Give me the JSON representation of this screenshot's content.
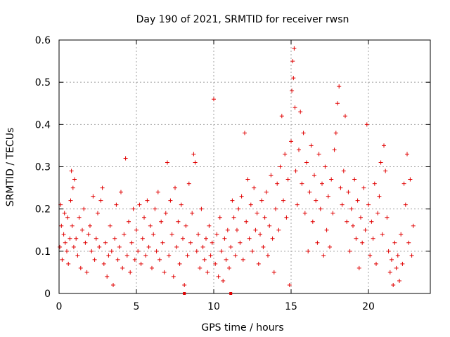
{
  "chart_data": {
    "type": "scatter",
    "title": "Day 190 of 2021, SRMTID for receiver rwsn",
    "xlabel": "GPS time / hours",
    "ylabel": "SRMTID / TECUs",
    "xlim": [
      0,
      24
    ],
    "ylim": [
      0,
      0.6
    ],
    "x_ticks": [
      0,
      5,
      10,
      15,
      20
    ],
    "x_tick_labels": [
      "0",
      "5",
      "10",
      "15",
      "20"
    ],
    "y_ticks": [
      0,
      0.1,
      0.2,
      0.3,
      0.4,
      0.5,
      0.6
    ],
    "y_tick_labels": [
      "0",
      "0.1",
      "0.2",
      "0.3",
      "0.4",
      "0.5",
      "0.6"
    ],
    "grid": true,
    "series_color": "#e00000",
    "marker": "plus",
    "series": [
      {
        "name": "SRMTID",
        "points": [
          [
            0.05,
            0.11
          ],
          [
            0.1,
            0.21
          ],
          [
            0.15,
            0.16
          ],
          [
            0.2,
            0.08
          ],
          [
            0.3,
            0.14
          ],
          [
            0.35,
            0.19
          ],
          [
            0.4,
            0.12
          ],
          [
            0.5,
            0.1
          ],
          [
            0.55,
            0.18
          ],
          [
            0.6,
            0.07
          ],
          [
            0.7,
            0.13
          ],
          [
            0.75,
            0.22
          ],
          [
            0.8,
            0.29
          ],
          [
            0.85,
            0.16
          ],
          [
            0.9,
            0.25
          ],
          [
            0.95,
            0.11
          ],
          [
            1.0,
            0.27
          ],
          [
            1.1,
            0.13
          ],
          [
            1.2,
            0.09
          ],
          [
            1.3,
            0.18
          ],
          [
            1.4,
            0.06
          ],
          [
            1.5,
            0.15
          ],
          [
            1.6,
            0.2
          ],
          [
            1.7,
            0.12
          ],
          [
            1.8,
            0.05
          ],
          [
            1.9,
            0.14
          ],
          [
            2.0,
            0.16
          ],
          [
            2.1,
            0.1
          ],
          [
            2.2,
            0.23
          ],
          [
            2.3,
            0.08
          ],
          [
            2.4,
            0.13
          ],
          [
            2.5,
            0.19
          ],
          [
            2.6,
            0.11
          ],
          [
            2.7,
            0.22
          ],
          [
            2.8,
            0.25
          ],
          [
            2.9,
            0.07
          ],
          [
            3.0,
            0.12
          ],
          [
            3.1,
            0.04
          ],
          [
            3.2,
            0.09
          ],
          [
            3.3,
            0.16
          ],
          [
            3.4,
            0.1
          ],
          [
            3.5,
            0.02
          ],
          [
            3.6,
            0.13
          ],
          [
            3.7,
            0.21
          ],
          [
            3.8,
            0.08
          ],
          [
            3.9,
            0.11
          ],
          [
            4.0,
            0.24
          ],
          [
            4.1,
            0.06
          ],
          [
            4.2,
            0.14
          ],
          [
            4.3,
            0.32
          ],
          [
            4.4,
            0.09
          ],
          [
            4.5,
            0.17
          ],
          [
            4.6,
            0.05
          ],
          [
            4.7,
            0.12
          ],
          [
            4.8,
            0.2
          ],
          [
            4.9,
            0.08
          ],
          [
            5.0,
            0.15
          ],
          [
            5.1,
            0.1
          ],
          [
            5.2,
            0.21
          ],
          [
            5.3,
            0.07
          ],
          [
            5.4,
            0.13
          ],
          [
            5.5,
            0.18
          ],
          [
            5.6,
            0.09
          ],
          [
            5.7,
            0.22
          ],
          [
            5.8,
            0.11
          ],
          [
            5.9,
            0.16
          ],
          [
            6.0,
            0.06
          ],
          [
            6.1,
            0.14
          ],
          [
            6.2,
            0.2
          ],
          [
            6.3,
            0.1
          ],
          [
            6.4,
            0.24
          ],
          [
            6.5,
            0.08
          ],
          [
            6.6,
            0.17
          ],
          [
            6.7,
            0.12
          ],
          [
            6.8,
            0.05
          ],
          [
            6.9,
            0.19
          ],
          [
            7.0,
            0.31
          ],
          [
            7.1,
            0.09
          ],
          [
            7.2,
            0.22
          ],
          [
            7.3,
            0.14
          ],
          [
            7.4,
            0.04
          ],
          [
            7.5,
            0.25
          ],
          [
            7.6,
            0.11
          ],
          [
            7.7,
            0.17
          ],
          [
            7.8,
            0.07
          ],
          [
            7.9,
            0.21
          ],
          [
            8.0,
            0.13
          ],
          [
            8.1,
            0.02
          ],
          [
            8.2,
            0.16
          ],
          [
            8.3,
            0.09
          ],
          [
            8.4,
            0.26
          ],
          [
            8.5,
            0.12
          ],
          [
            8.6,
            0.19
          ],
          [
            8.7,
            0.33
          ],
          [
            8.8,
            0.31
          ],
          [
            8.9,
            0.1
          ],
          [
            9.0,
            0.14
          ],
          [
            9.1,
            0.06
          ],
          [
            9.2,
            0.2
          ],
          [
            9.3,
            0.11
          ],
          [
            9.4,
            0.08
          ],
          [
            9.5,
            0.13
          ],
          [
            9.6,
            0.05
          ],
          [
            9.7,
            0.16
          ],
          [
            9.8,
            0.09
          ],
          [
            9.9,
            0.12
          ],
          [
            10.0,
            0.46
          ],
          [
            10.1,
            0.07
          ],
          [
            10.2,
            0.14
          ],
          [
            10.3,
            0.04
          ],
          [
            10.4,
            0.18
          ],
          [
            10.5,
            0.1
          ],
          [
            10.6,
            0.03
          ],
          [
            10.7,
            0.13
          ],
          [
            10.8,
            0.08
          ],
          [
            10.9,
            0.15
          ],
          [
            11.0,
            0.06
          ],
          [
            11.1,
            0.11
          ],
          [
            11.2,
            0.22
          ],
          [
            11.3,
            0.18
          ],
          [
            11.4,
            0.09
          ],
          [
            11.5,
            0.15
          ],
          [
            11.6,
            0.2
          ],
          [
            11.7,
            0.12
          ],
          [
            11.8,
            0.23
          ],
          [
            11.9,
            0.08
          ],
          [
            12.0,
            0.38
          ],
          [
            12.1,
            0.17
          ],
          [
            12.2,
            0.27
          ],
          [
            12.3,
            0.13
          ],
          [
            12.4,
            0.21
          ],
          [
            12.5,
            0.1
          ],
          [
            12.6,
            0.25
          ],
          [
            12.7,
            0.15
          ],
          [
            12.8,
            0.19
          ],
          [
            12.9,
            0.07
          ],
          [
            13.0,
            0.14
          ],
          [
            13.1,
            0.22
          ],
          [
            13.2,
            0.11
          ],
          [
            13.3,
            0.18
          ],
          [
            13.4,
            0.24
          ],
          [
            13.5,
            0.09
          ],
          [
            13.6,
            0.16
          ],
          [
            13.7,
            0.28
          ],
          [
            13.8,
            0.13
          ],
          [
            13.9,
            0.05
          ],
          [
            14.0,
            0.2
          ],
          [
            14.1,
            0.26
          ],
          [
            14.2,
            0.15
          ],
          [
            14.3,
            0.3
          ],
          [
            14.4,
            0.42
          ],
          [
            14.5,
            0.22
          ],
          [
            14.6,
            0.33
          ],
          [
            14.7,
            0.18
          ],
          [
            14.8,
            0.27
          ],
          [
            14.9,
            0.02
          ],
          [
            15.0,
            0.36
          ],
          [
            15.05,
            0.48
          ],
          [
            15.1,
            0.55
          ],
          [
            15.15,
            0.51
          ],
          [
            15.2,
            0.58
          ],
          [
            15.25,
            0.44
          ],
          [
            15.3,
            0.29
          ],
          [
            15.4,
            0.21
          ],
          [
            15.5,
            0.34
          ],
          [
            15.6,
            0.43
          ],
          [
            15.7,
            0.26
          ],
          [
            15.8,
            0.38
          ],
          [
            15.9,
            0.19
          ],
          [
            16.0,
            0.31
          ],
          [
            16.1,
            0.1
          ],
          [
            16.2,
            0.24
          ],
          [
            16.3,
            0.35
          ],
          [
            16.4,
            0.17
          ],
          [
            16.5,
            0.28
          ],
          [
            16.6,
            0.22
          ],
          [
            16.7,
            0.12
          ],
          [
            16.8,
            0.33
          ],
          [
            16.9,
            0.2
          ],
          [
            17.0,
            0.26
          ],
          [
            17.1,
            0.09
          ],
          [
            17.2,
            0.3
          ],
          [
            17.3,
            0.15
          ],
          [
            17.4,
            0.23
          ],
          [
            17.5,
            0.11
          ],
          [
            17.6,
            0.27
          ],
          [
            17.7,
            0.19
          ],
          [
            17.8,
            0.34
          ],
          [
            17.9,
            0.38
          ],
          [
            18.0,
            0.45
          ],
          [
            18.1,
            0.49
          ],
          [
            18.2,
            0.25
          ],
          [
            18.3,
            0.21
          ],
          [
            18.4,
            0.29
          ],
          [
            18.5,
            0.42
          ],
          [
            18.6,
            0.17
          ],
          [
            18.7,
            0.24
          ],
          [
            18.8,
            0.1
          ],
          [
            18.9,
            0.2
          ],
          [
            19.0,
            0.16
          ],
          [
            19.1,
            0.27
          ],
          [
            19.2,
            0.13
          ],
          [
            19.3,
            0.22
          ],
          [
            19.4,
            0.06
          ],
          [
            19.5,
            0.18
          ],
          [
            19.6,
            0.12
          ],
          [
            19.7,
            0.25
          ],
          [
            19.8,
            0.15
          ],
          [
            19.9,
            0.4
          ],
          [
            20.0,
            0.21
          ],
          [
            20.1,
            0.09
          ],
          [
            20.2,
            0.17
          ],
          [
            20.3,
            0.13
          ],
          [
            20.4,
            0.26
          ],
          [
            20.5,
            0.07
          ],
          [
            20.6,
            0.19
          ],
          [
            20.7,
            0.23
          ],
          [
            20.8,
            0.31
          ],
          [
            20.9,
            0.14
          ],
          [
            21.0,
            0.35
          ],
          [
            21.1,
            0.29
          ],
          [
            21.2,
            0.18
          ],
          [
            21.3,
            0.1
          ],
          [
            21.4,
            0.05
          ],
          [
            21.5,
            0.08
          ],
          [
            21.6,
            0.02
          ],
          [
            21.7,
            0.12
          ],
          [
            21.8,
            0.06
          ],
          [
            21.9,
            0.09
          ],
          [
            22.0,
            0.03
          ],
          [
            22.1,
            0.14
          ],
          [
            22.2,
            0.07
          ],
          [
            22.3,
            0.26
          ],
          [
            22.4,
            0.21
          ],
          [
            22.5,
            0.33
          ],
          [
            22.6,
            0.12
          ],
          [
            22.7,
            0.27
          ],
          [
            22.8,
            0.09
          ],
          [
            22.9,
            0.16
          ]
        ]
      }
    ],
    "axis_markers_x": [
      8.1,
      11.1
    ]
  }
}
